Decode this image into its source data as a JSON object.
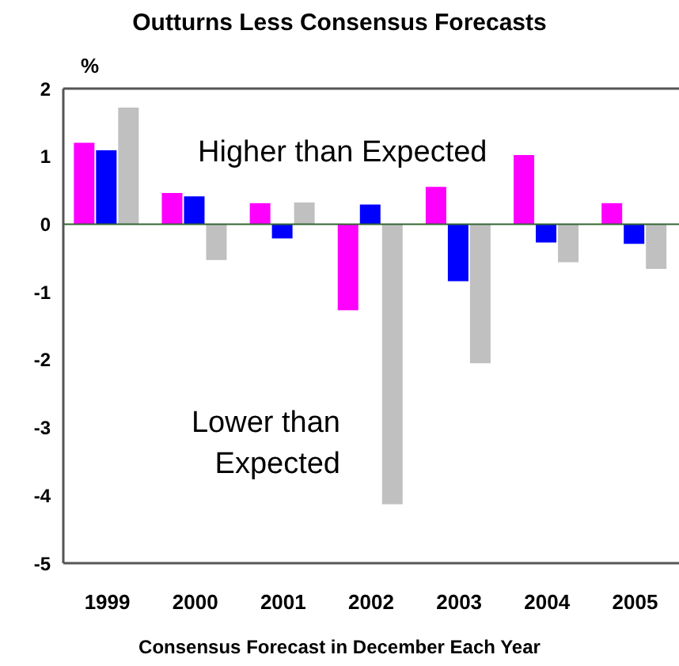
{
  "chart_data": {
    "type": "bar",
    "title": "Outturns Less Consensus Forecasts",
    "ylabel": "%",
    "xlabel": "Consensus Forecast in December Each Year",
    "categories": [
      "1999",
      "2000",
      "2001",
      "2002",
      "2003",
      "2004",
      "2005"
    ],
    "series": [
      {
        "color": "#ff00ff",
        "values": [
          1.2,
          0.46,
          0.31,
          -1.27,
          0.55,
          1.02,
          0.31
        ]
      },
      {
        "color": "#0000ff",
        "values": [
          1.09,
          0.41,
          -0.21,
          0.29,
          -0.84,
          -0.27,
          -0.29
        ]
      },
      {
        "color": "#c0c0c0",
        "values": [
          1.72,
          -0.53,
          0.32,
          -4.13,
          -2.05,
          -0.56,
          -0.66
        ]
      }
    ],
    "ylim": [
      -5,
      2
    ],
    "yticks": [
      -5,
      -4,
      -3,
      -2,
      -1,
      0,
      1,
      2
    ],
    "grid": false,
    "legend": false,
    "ref_lines": [
      {
        "axis": "y",
        "value": 0,
        "color": "#336633"
      }
    ],
    "annotations": [
      "Higher than Expected",
      "Lower than\nExpected"
    ]
  }
}
